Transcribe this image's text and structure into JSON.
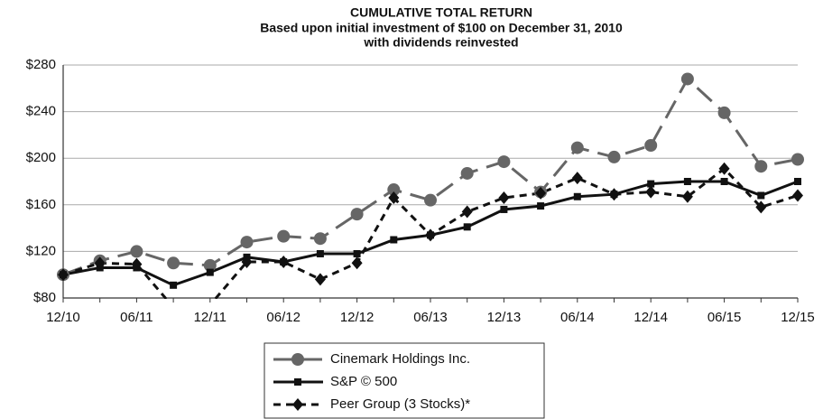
{
  "chart_data": {
    "type": "line",
    "title": "CUMULATIVE TOTAL RETURN",
    "subtitle": [
      "Based upon initial investment of $100 on December 31, 2010",
      "with dividends reinvested"
    ],
    "categories": [
      "12/10",
      null,
      "06/11",
      null,
      "12/11",
      null,
      "06/12",
      null,
      "12/12",
      null,
      "06/13",
      null,
      "12/13",
      null,
      "06/14",
      null,
      "12/14",
      null,
      "06/15",
      null,
      "12/15"
    ],
    "series": [
      {
        "name": "Cinemark Holdings Inc.",
        "color": "#666666",
        "dash": "long",
        "marker": "circle",
        "values": [
          100,
          112,
          120,
          110,
          108,
          128,
          133,
          131,
          152,
          173,
          164,
          187,
          197,
          171,
          209,
          201,
          211,
          268,
          239,
          193,
          199
        ]
      },
      {
        "name": "S&P © 500",
        "color": "#111111",
        "dash": "solid",
        "marker": "square",
        "values": [
          100,
          106,
          106,
          91,
          102,
          115,
          111,
          118,
          118,
          130,
          134,
          141,
          156,
          159,
          167,
          169,
          178,
          180,
          180,
          168,
          180
        ]
      },
      {
        "name": "Peer Group (3 Stocks)*",
        "color": "#111111",
        "dash": "short",
        "marker": "diamond",
        "values": [
          100,
          110,
          109,
          72,
          74,
          111,
          111,
          96,
          110,
          166,
          134,
          154,
          166,
          170,
          183,
          169,
          171,
          167,
          191,
          158,
          168
        ]
      }
    ],
    "ylim": [
      80,
      280
    ],
    "yticks": [
      {
        "value": 80,
        "label": "$80"
      },
      {
        "value": 120,
        "label": "$120"
      },
      {
        "value": 160,
        "label": "$160"
      },
      {
        "value": 200,
        "label": "$200"
      },
      {
        "value": 240,
        "label": "$240"
      },
      {
        "value": 280,
        "label": "$280"
      }
    ],
    "grid": true,
    "legend": "bottom"
  }
}
